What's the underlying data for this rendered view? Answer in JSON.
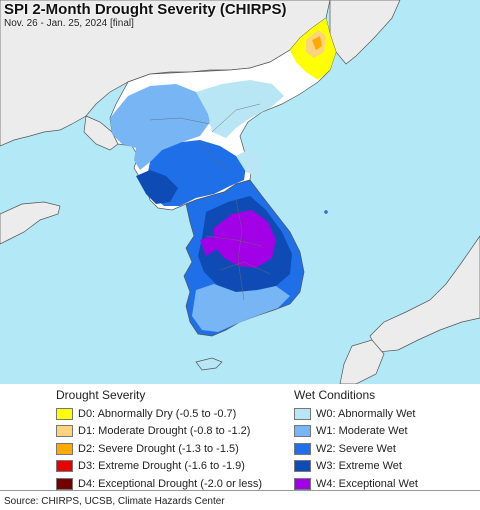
{
  "header": {
    "title": "SPI 2-Month Drought Severity (CHIRPS)",
    "subtitle": "Nov. 26 - Jan. 25, 2024 [final]"
  },
  "legend": {
    "drought": {
      "heading": "Drought Severity",
      "items": [
        {
          "label": "D0: Abnormally Dry (-0.5 to -0.7)",
          "color": "#ffff00"
        },
        {
          "label": "D1: Moderate Drought (-0.8 to -1.2)",
          "color": "#fcd37f"
        },
        {
          "label": "D2: Severe Drought (-1.3 to -1.5)",
          "color": "#ffaa00"
        },
        {
          "label": "D3: Extreme Drought (-1.6 to -1.9)",
          "color": "#e60000"
        },
        {
          "label": "D4: Exceptional Drought (-2.0 or less)",
          "color": "#730000"
        }
      ]
    },
    "wet": {
      "heading": "Wet Conditions",
      "items": [
        {
          "label": "W0: Abnormally Wet",
          "color": "#b8e6f5"
        },
        {
          "label": "W1: Moderate Wet",
          "color": "#77b5f5"
        },
        {
          "label": "W2: Severe Wet",
          "color": "#1e6fe8"
        },
        {
          "label": "W3: Extreme Wet",
          "color": "#0f4bb4"
        },
        {
          "label": "W4: Exceptional Wet",
          "color": "#a200e6"
        }
      ]
    }
  },
  "footer": {
    "source": "Source: CHIRPS, UCSB, Climate Hazards Center"
  },
  "map_colors": {
    "ocean": "#b3e9f7",
    "land_outside": "#ececec",
    "land_neutral": "#ffffff",
    "border": "#555555"
  }
}
